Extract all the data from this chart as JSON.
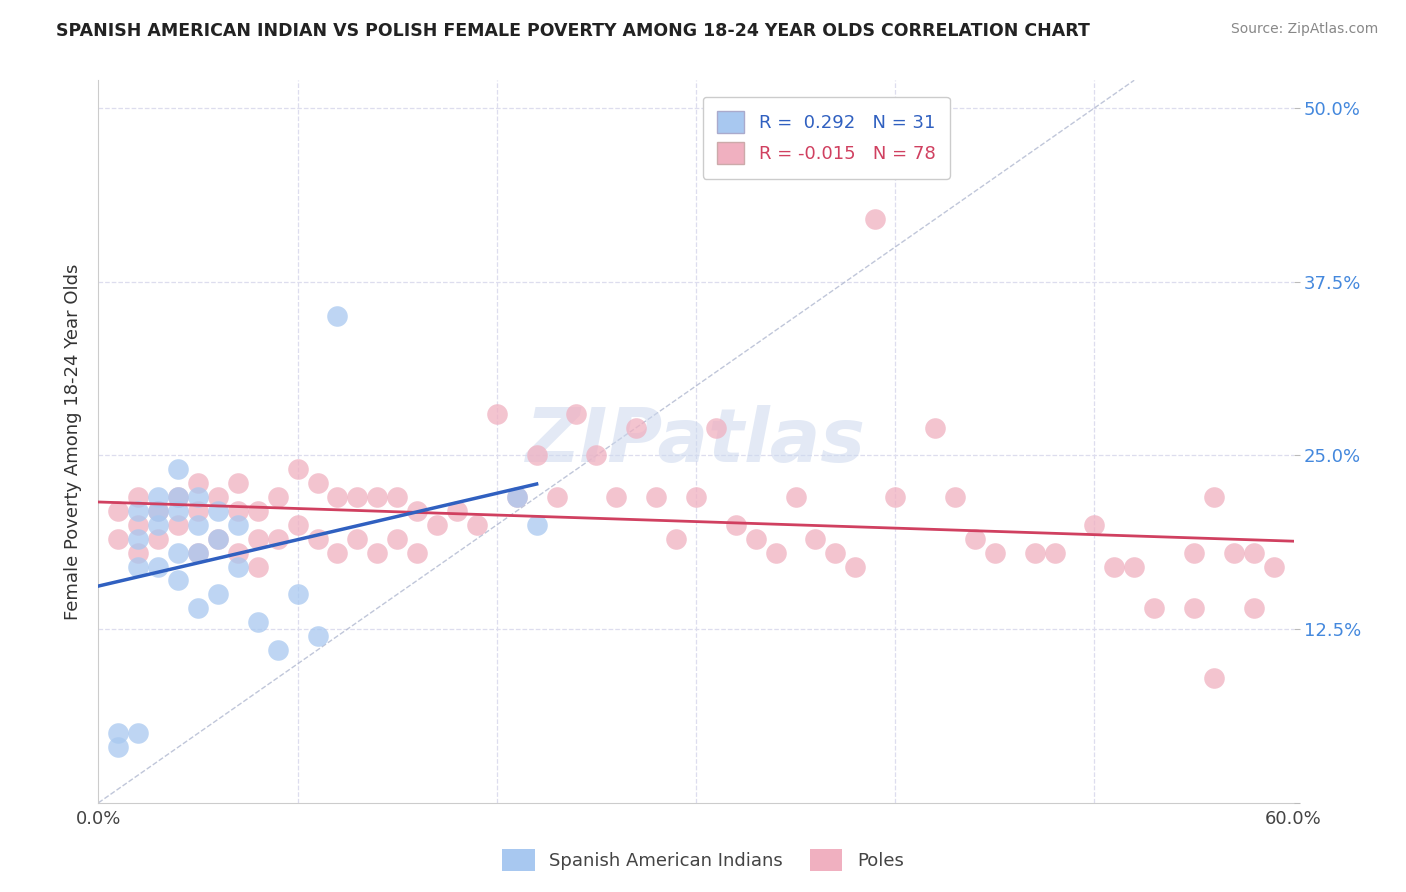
{
  "title": "SPANISH AMERICAN INDIAN VS POLISH FEMALE POVERTY AMONG 18-24 YEAR OLDS CORRELATION CHART",
  "source": "Source: ZipAtlas.com",
  "ylabel": "Female Poverty Among 18-24 Year Olds",
  "xlim": [
    0.0,
    0.6
  ],
  "ylim": [
    0.0,
    0.52
  ],
  "xticks": [
    0.0,
    0.1,
    0.2,
    0.3,
    0.4,
    0.5,
    0.6
  ],
  "xticklabels": [
    "0.0%",
    "",
    "",
    "",
    "",
    "",
    "60.0%"
  ],
  "yticks_right": [
    0.0,
    0.125,
    0.25,
    0.375,
    0.5
  ],
  "yticklabels_right": [
    "",
    "12.5%",
    "25.0%",
    "37.5%",
    "50.0%"
  ],
  "blue_color": "#a8c8f0",
  "pink_color": "#f0b0c0",
  "blue_line_color": "#3060c0",
  "pink_line_color": "#d04060",
  "legend_blue_label": "R =  0.292   N = 31",
  "legend_pink_label": "R = -0.015   N = 78",
  "bottom_legend_blue": "Spanish American Indians",
  "bottom_legend_pink": "Poles",
  "blue_x": [
    0.01,
    0.01,
    0.02,
    0.02,
    0.02,
    0.02,
    0.03,
    0.03,
    0.03,
    0.03,
    0.04,
    0.04,
    0.04,
    0.04,
    0.04,
    0.05,
    0.05,
    0.05,
    0.05,
    0.06,
    0.06,
    0.06,
    0.07,
    0.07,
    0.08,
    0.09,
    0.1,
    0.11,
    0.12,
    0.21,
    0.22
  ],
  "blue_y": [
    0.05,
    0.04,
    0.21,
    0.19,
    0.17,
    0.05,
    0.22,
    0.21,
    0.2,
    0.17,
    0.24,
    0.22,
    0.21,
    0.18,
    0.16,
    0.22,
    0.2,
    0.18,
    0.14,
    0.21,
    0.19,
    0.15,
    0.2,
    0.17,
    0.13,
    0.11,
    0.15,
    0.12,
    0.35,
    0.22,
    0.2
  ],
  "pink_x": [
    0.01,
    0.01,
    0.02,
    0.02,
    0.02,
    0.03,
    0.03,
    0.04,
    0.04,
    0.05,
    0.05,
    0.05,
    0.06,
    0.06,
    0.07,
    0.07,
    0.07,
    0.08,
    0.08,
    0.08,
    0.09,
    0.09,
    0.1,
    0.1,
    0.11,
    0.11,
    0.12,
    0.12,
    0.13,
    0.13,
    0.14,
    0.14,
    0.15,
    0.15,
    0.16,
    0.16,
    0.17,
    0.18,
    0.19,
    0.2,
    0.21,
    0.22,
    0.23,
    0.24,
    0.25,
    0.26,
    0.27,
    0.28,
    0.29,
    0.3,
    0.31,
    0.32,
    0.33,
    0.34,
    0.35,
    0.36,
    0.37,
    0.38,
    0.39,
    0.4,
    0.42,
    0.43,
    0.44,
    0.45,
    0.47,
    0.48,
    0.5,
    0.51,
    0.52,
    0.53,
    0.55,
    0.55,
    0.56,
    0.56,
    0.57,
    0.58,
    0.58,
    0.59
  ],
  "pink_y": [
    0.21,
    0.19,
    0.22,
    0.2,
    0.18,
    0.21,
    0.19,
    0.22,
    0.2,
    0.23,
    0.21,
    0.18,
    0.22,
    0.19,
    0.23,
    0.21,
    0.18,
    0.21,
    0.19,
    0.17,
    0.22,
    0.19,
    0.24,
    0.2,
    0.23,
    0.19,
    0.22,
    0.18,
    0.22,
    0.19,
    0.22,
    0.18,
    0.22,
    0.19,
    0.21,
    0.18,
    0.2,
    0.21,
    0.2,
    0.28,
    0.22,
    0.25,
    0.22,
    0.28,
    0.25,
    0.22,
    0.27,
    0.22,
    0.19,
    0.22,
    0.27,
    0.2,
    0.19,
    0.18,
    0.22,
    0.19,
    0.18,
    0.17,
    0.42,
    0.22,
    0.27,
    0.22,
    0.19,
    0.18,
    0.18,
    0.18,
    0.2,
    0.17,
    0.17,
    0.14,
    0.18,
    0.14,
    0.22,
    0.09,
    0.18,
    0.18,
    0.14,
    0.17
  ]
}
